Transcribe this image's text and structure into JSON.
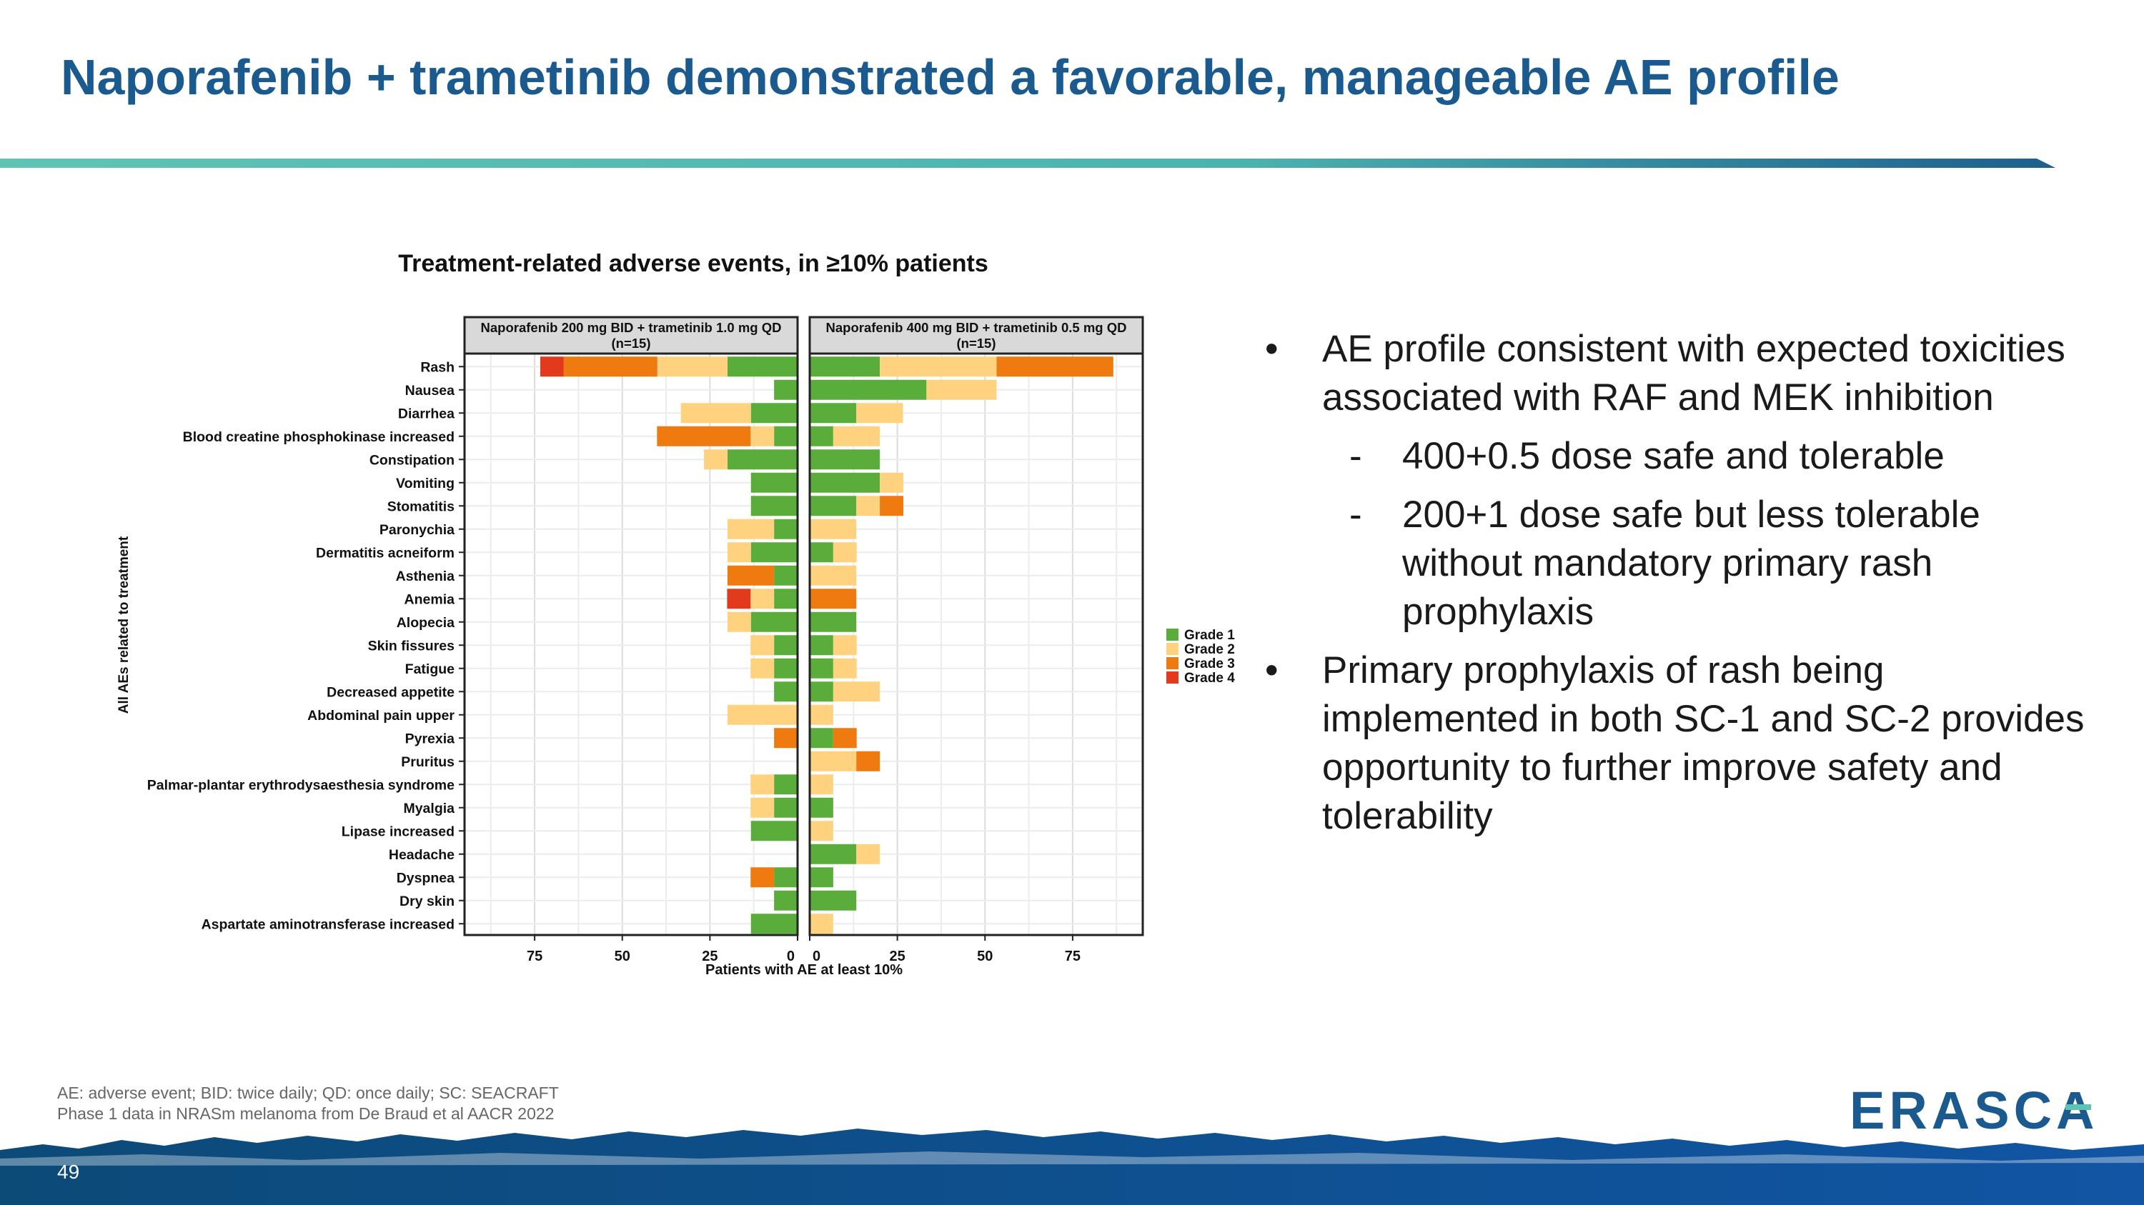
{
  "slide": {
    "title": "Naporafenib + trametinib demonstrated a favorable, manageable AE profile",
    "page_number": "49",
    "footnote_line1": "AE: adverse event; BID: twice daily; QD: once daily; SC: SEACRAFT",
    "footnote_line2": "Phase 1 data in NRASm melanoma from De Braud et al AACR 2022",
    "logo_text": "ERASCA"
  },
  "bullets": {
    "b1": "AE profile consistent with expected toxicities associated with RAF and MEK inhibition",
    "b1a": "400+0.5 dose safe and tolerable",
    "b1b": "200+1 dose safe but less tolerable without mandatory primary rash prophylaxis",
    "b2": "Primary prophylaxis of rash being implemented in both SC-1 and SC-2 provides opportunity to further improve safety and tolerability"
  },
  "colors": {
    "grade1": "#5aad3a",
    "grade2": "#ffd280",
    "grade3": "#ee7a10",
    "grade4": "#e23a1c",
    "title": "#1a5a8e"
  },
  "chart_data": {
    "type": "bar",
    "orientation": "horizontal-diverging-stacked",
    "title": "Treatment-related adverse events, in ≥10% patients",
    "ylabel": "All AEs related to treatment",
    "xlabel": "Patients with AE at least 10%",
    "xlim": [
      0,
      95
    ],
    "xticks": [
      0,
      25,
      50,
      75
    ],
    "legend_position": "right",
    "legend": [
      "Grade 1",
      "Grade 2",
      "Grade 3",
      "Grade 4"
    ],
    "categories": [
      "Rash",
      "Nausea",
      "Diarrhea",
      "Blood creatine phosphokinase increased",
      "Constipation",
      "Vomiting",
      "Stomatitis",
      "Paronychia",
      "Dermatitis acneiform",
      "Asthenia",
      "Anemia",
      "Alopecia",
      "Skin fissures",
      "Fatigue",
      "Decreased appetite",
      "Abdominal pain upper",
      "Pyrexia",
      "Pruritus",
      "Palmar-plantar erythrodysaesthesia syndrome",
      "Myalgia",
      "Lipase increased",
      "Headache",
      "Dyspnea",
      "Dry skin",
      "Aspartate aminotransferase increased"
    ],
    "panels": [
      {
        "name": "Naporafenib 200 mg BID + trametinib 1.0 mg QD",
        "n": "(n=15)",
        "side": "left",
        "series": [
          {
            "name": "Grade 1",
            "values": [
              20,
              6.7,
              13.3,
              6.7,
              20,
              13.3,
              13.3,
              6.7,
              13.3,
              6.7,
              6.7,
              13.3,
              6.7,
              6.7,
              6.7,
              0,
              0,
              0,
              6.7,
              6.7,
              13.3,
              0,
              6.7,
              6.7,
              13.3
            ]
          },
          {
            "name": "Grade 2",
            "values": [
              20,
              0,
              20,
              6.7,
              6.7,
              0,
              0,
              13.3,
              6.7,
              0,
              6.7,
              6.7,
              6.7,
              6.7,
              0,
              20,
              0,
              0,
              6.7,
              6.7,
              0,
              0,
              0,
              0,
              0
            ]
          },
          {
            "name": "Grade 3",
            "values": [
              26.7,
              0,
              0,
              26.7,
              0,
              0,
              0,
              0,
              0,
              13.3,
              0,
              0,
              0,
              0,
              0,
              0,
              6.7,
              0,
              0,
              0,
              0,
              0,
              6.7,
              0,
              0
            ]
          },
          {
            "name": "Grade 4",
            "values": [
              6.7,
              0,
              0,
              0,
              0,
              0,
              0,
              0,
              0,
              0,
              6.7,
              0,
              0,
              0,
              0,
              0,
              0,
              0,
              0,
              0,
              0,
              0,
              0,
              0,
              0
            ]
          }
        ]
      },
      {
        "name": "Naporafenib 400 mg BID + trametinib 0.5 mg QD",
        "n": "(n=15)",
        "side": "right",
        "series": [
          {
            "name": "Grade 1",
            "values": [
              20,
              33.3,
              13.3,
              6.7,
              20,
              20,
              13.3,
              0,
              6.7,
              0,
              0,
              13.3,
              6.7,
              6.7,
              6.7,
              0,
              6.7,
              0,
              0,
              6.7,
              0,
              13.3,
              6.7,
              13.3,
              0
            ]
          },
          {
            "name": "Grade 2",
            "values": [
              33.3,
              20,
              13.3,
              13.3,
              0,
              6.7,
              6.7,
              13.3,
              6.7,
              13.3,
              0,
              0,
              6.7,
              6.7,
              13.3,
              6.7,
              0,
              13.3,
              6.7,
              0,
              6.7,
              6.7,
              0,
              0,
              6.7
            ]
          },
          {
            "name": "Grade 3",
            "values": [
              33.3,
              0,
              0,
              0,
              0,
              0,
              6.7,
              0,
              0,
              0,
              13.3,
              0,
              0,
              0,
              0,
              0,
              6.7,
              6.7,
              0,
              0,
              0,
              0,
              0,
              0,
              0
            ]
          },
          {
            "name": "Grade 4",
            "values": [
              0,
              0,
              0,
              0,
              0,
              0,
              0,
              0,
              0,
              0,
              0,
              0,
              0,
              0,
              0,
              0,
              0,
              0,
              0,
              0,
              0,
              0,
              0,
              0,
              0
            ]
          }
        ]
      }
    ]
  }
}
